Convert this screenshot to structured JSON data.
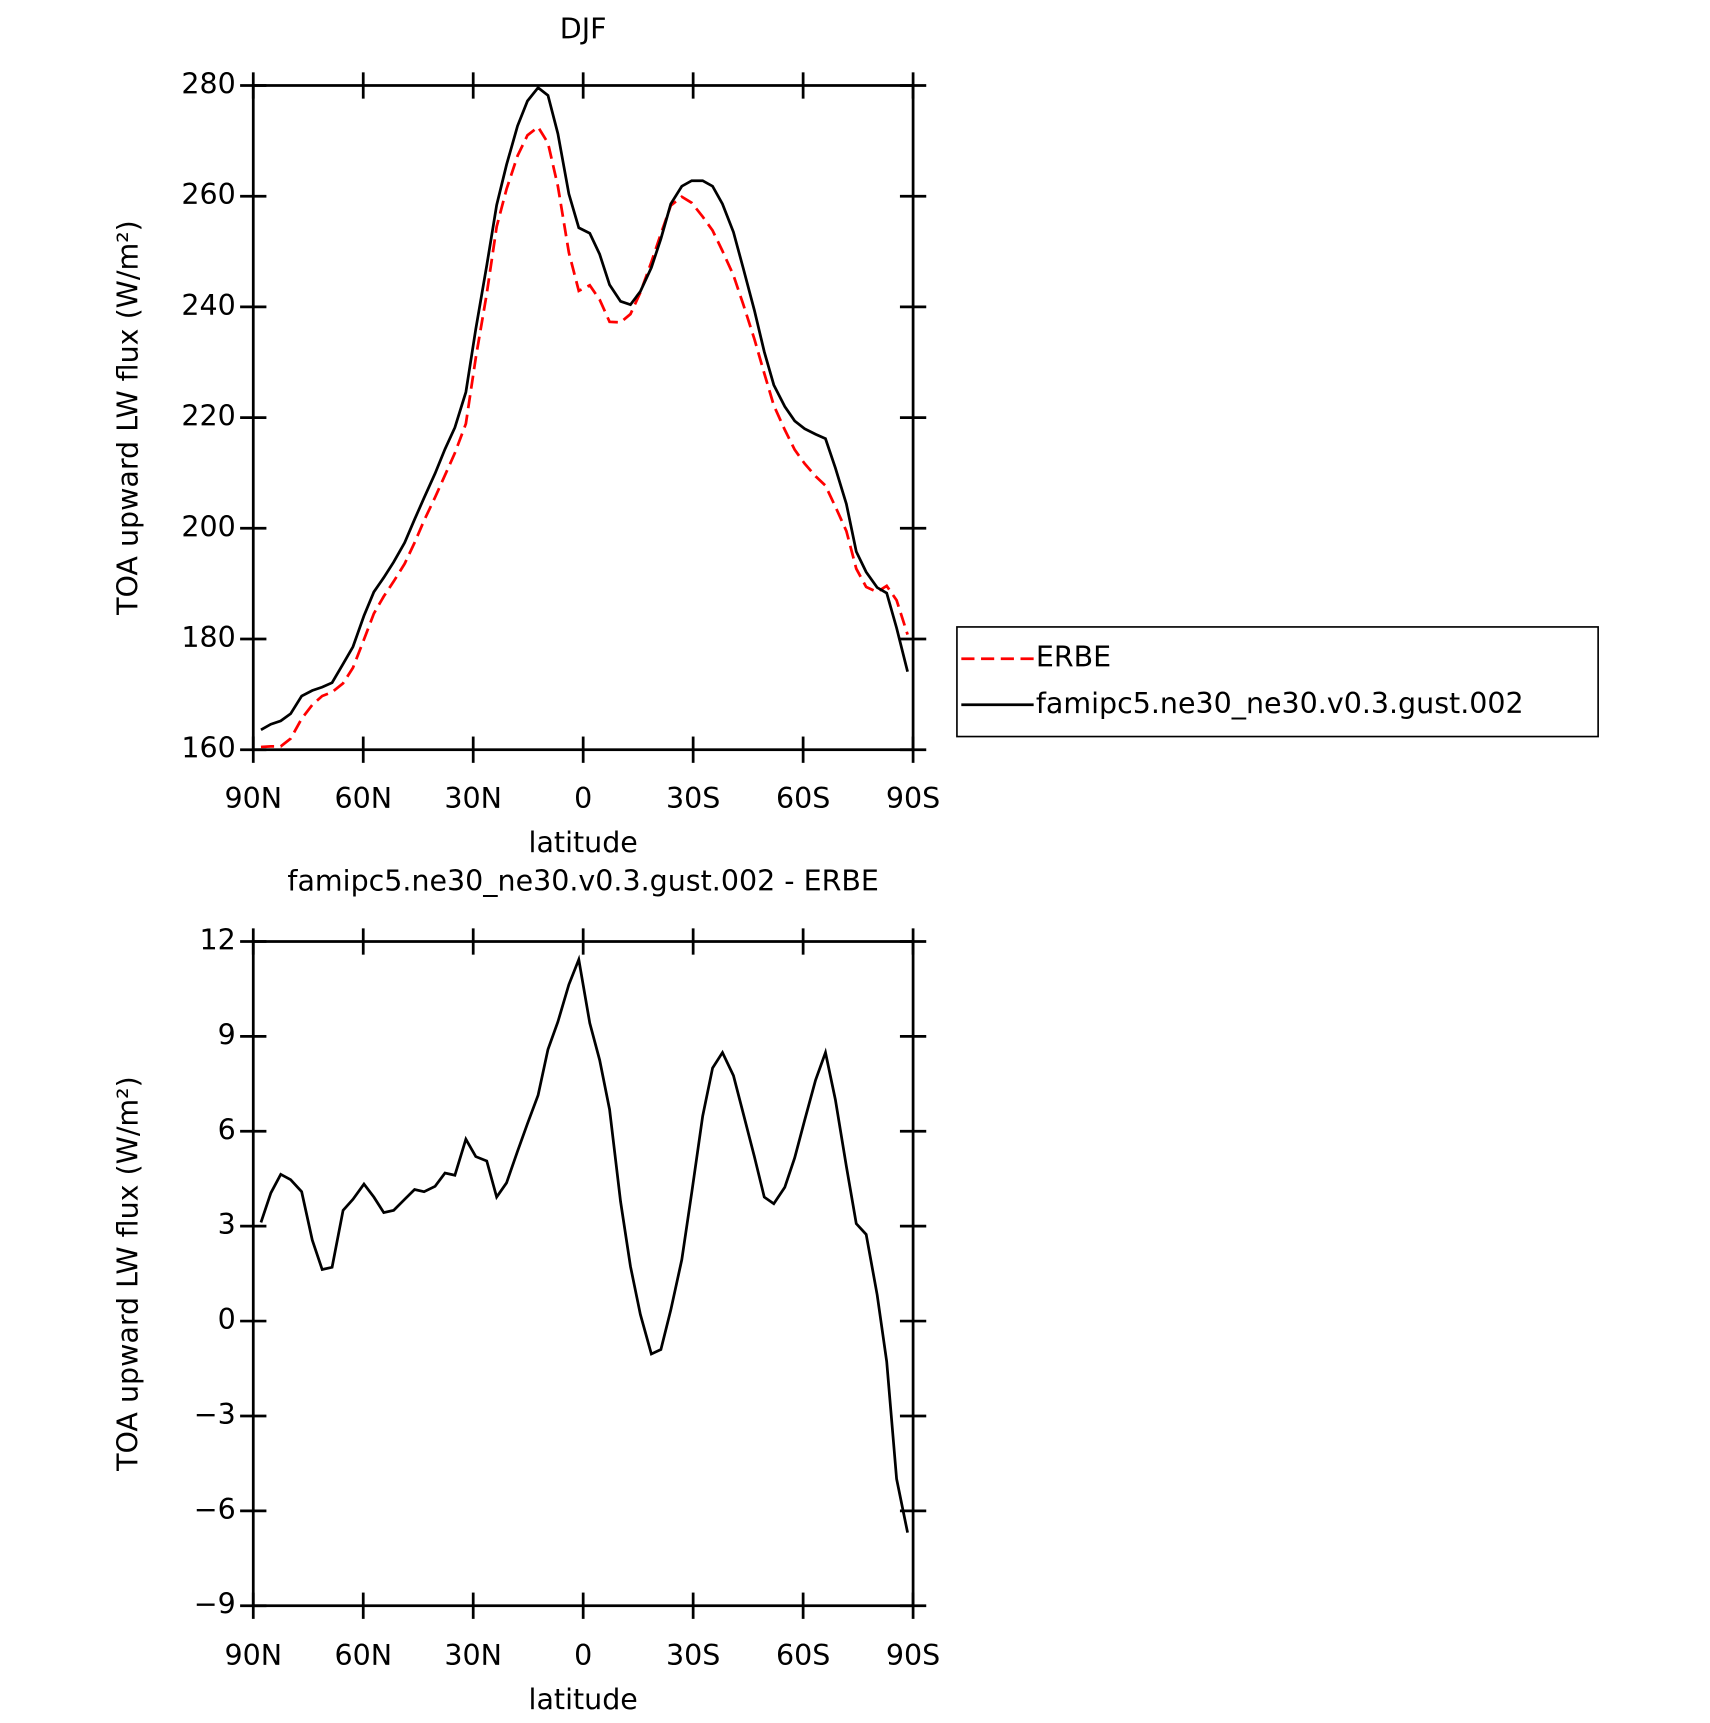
{
  "chart_data": [
    {
      "type": "line",
      "title": "DJF",
      "xlabel": "latitude",
      "ylabel": "TOA upward LW flux (W/m²)",
      "x": [
        87.9,
        85.2,
        82.5,
        79.8,
        76.8,
        73.9,
        71.2,
        68.5,
        65.5,
        62.8,
        59.8,
        57.1,
        54.4,
        51.7,
        48.7,
        46.0,
        43.4,
        40.4,
        37.7,
        35.0,
        32.0,
        29.3,
        26.3,
        23.6,
        20.9,
        17.9,
        15.2,
        12.3,
        9.6,
        6.9,
        3.9,
        1.2,
        -1.8,
        -4.5,
        -7.2,
        -10.2,
        -12.9,
        -15.6,
        -18.6,
        -21.2,
        -23.9,
        -26.9,
        -29.6,
        -32.6,
        -35.3,
        -38.0,
        -41.0,
        -43.7,
        -46.7,
        -49.4,
        -52.0,
        -55.0,
        -57.7,
        -60.4,
        -63.4,
        -66.1,
        -68.8,
        -71.8,
        -74.5,
        -77.2,
        -80.2,
        -82.8,
        -85.5,
        -88.5
      ],
      "series": [
        {
          "name": "ERBE",
          "color": "#ff0000",
          "line_style": "dashed",
          "values": [
            160.5,
            160.6,
            160.6,
            162.0,
            165.6,
            168.1,
            169.7,
            170.4,
            172.0,
            174.8,
            179.9,
            184.6,
            187.7,
            190.4,
            193.6,
            197.4,
            201.4,
            205.6,
            209.6,
            213.6,
            218.9,
            230.8,
            242.4,
            254.5,
            261.3,
            267.3,
            271.0,
            272.5,
            269.6,
            261.8,
            249.8,
            242.9,
            243.9,
            241.3,
            237.3,
            237.2,
            238.7,
            242.6,
            248.1,
            253.2,
            258.3,
            259.9,
            258.8,
            256.3,
            253.8,
            250.1,
            245.7,
            240.4,
            234.2,
            228.0,
            222.2,
            217.8,
            214.2,
            211.7,
            209.4,
            207.7,
            203.9,
            199.5,
            192.7,
            189.4,
            188.5,
            189.6,
            187.0,
            180.8
          ]
        },
        {
          "name": "famipc5.ne30_ne30.v0.3.gust.002",
          "color": "#000000",
          "line_style": "solid",
          "values": [
            163.6,
            164.6,
            165.2,
            166.5,
            169.7,
            170.7,
            171.3,
            172.1,
            175.5,
            178.6,
            184.2,
            188.5,
            191.1,
            193.9,
            197.4,
            201.6,
            205.5,
            209.9,
            214.3,
            218.2,
            224.6,
            236.0,
            247.5,
            258.4,
            265.7,
            272.7,
            277.2,
            279.6,
            278.2,
            271.3,
            260.4,
            254.3,
            253.3,
            249.5,
            244.0,
            241.0,
            240.4,
            242.8,
            247.1,
            252.3,
            258.6,
            261.8,
            262.8,
            262.8,
            261.8,
            258.6,
            253.5,
            246.9,
            239.4,
            231.9,
            225.9,
            222.0,
            219.4,
            218.0,
            217.0,
            216.2,
            210.9,
            204.4,
            195.8,
            192.1,
            189.3,
            188.3,
            182.0,
            174.1
          ]
        }
      ],
      "xlim": [
        90,
        -90
      ],
      "xticks": [
        {
          "value": 90,
          "label": "90N"
        },
        {
          "value": 60,
          "label": "60N"
        },
        {
          "value": 30,
          "label": "30N"
        },
        0,
        {
          "value": -30,
          "label": "30S"
        },
        {
          "value": -60,
          "label": "60S"
        },
        {
          "value": -90,
          "label": "90S"
        }
      ],
      "ylim": [
        160,
        280
      ],
      "yticks": [
        160,
        180,
        200,
        220,
        240,
        260,
        280
      ],
      "legend": "right"
    },
    {
      "type": "line",
      "title": "famipc5.ne30_ne30.v0.3.gust.002 - ERBE",
      "xlabel": "latitude",
      "ylabel": "TOA upward LW flux (W/m²)",
      "color": "#000000",
      "x": [
        87.9,
        85.2,
        82.5,
        79.8,
        76.8,
        73.9,
        71.2,
        68.5,
        65.5,
        62.8,
        59.8,
        57.1,
        54.4,
        51.7,
        48.7,
        46.0,
        43.4,
        40.4,
        37.7,
        35.0,
        32.0,
        29.3,
        26.3,
        23.6,
        20.9,
        17.9,
        15.2,
        12.3,
        9.6,
        6.9,
        3.9,
        1.2,
        -1.8,
        -4.5,
        -7.2,
        -10.2,
        -12.9,
        -15.6,
        -18.6,
        -21.2,
        -23.9,
        -26.9,
        -29.6,
        -32.6,
        -35.3,
        -38.0,
        -41.0,
        -43.7,
        -46.7,
        -49.4,
        -52.0,
        -55.0,
        -57.7,
        -60.4,
        -63.4,
        -66.1,
        -68.8,
        -71.8,
        -74.5,
        -77.2,
        -80.2,
        -82.8,
        -85.5,
        -88.5
      ],
      "values": [
        3.12,
        4.05,
        4.64,
        4.47,
        4.09,
        2.56,
        1.63,
        1.7,
        3.5,
        3.85,
        4.33,
        3.92,
        3.43,
        3.5,
        3.85,
        4.16,
        4.09,
        4.26,
        4.68,
        4.61,
        5.75,
        5.2,
        5.06,
        3.92,
        4.37,
        5.37,
        6.24,
        7.14,
        8.59,
        9.46,
        10.64,
        11.43,
        9.42,
        8.25,
        6.69,
        3.78,
        1.73,
        0.21,
        -1.04,
        -0.9,
        0.35,
        1.94,
        4.05,
        6.48,
        8.0,
        8.49,
        7.76,
        6.55,
        5.2,
        3.92,
        3.71,
        4.23,
        5.16,
        6.34,
        7.62,
        8.49,
        7.0,
        4.89,
        3.08,
        2.74,
        0.83,
        -1.28,
        -4.99,
        -6.69
      ],
      "xlim": [
        90,
        -90
      ],
      "xticks": [
        {
          "value": 90,
          "label": "90N"
        },
        {
          "value": 60,
          "label": "60N"
        },
        {
          "value": 30,
          "label": "30N"
        },
        0,
        {
          "value": -30,
          "label": "30S"
        },
        {
          "value": -60,
          "label": "60S"
        },
        {
          "value": -90,
          "label": "90S"
        }
      ],
      "ylim": [
        -9,
        12
      ],
      "yticks": [
        -9,
        -6,
        -3,
        0,
        3,
        6,
        9,
        12
      ]
    }
  ]
}
